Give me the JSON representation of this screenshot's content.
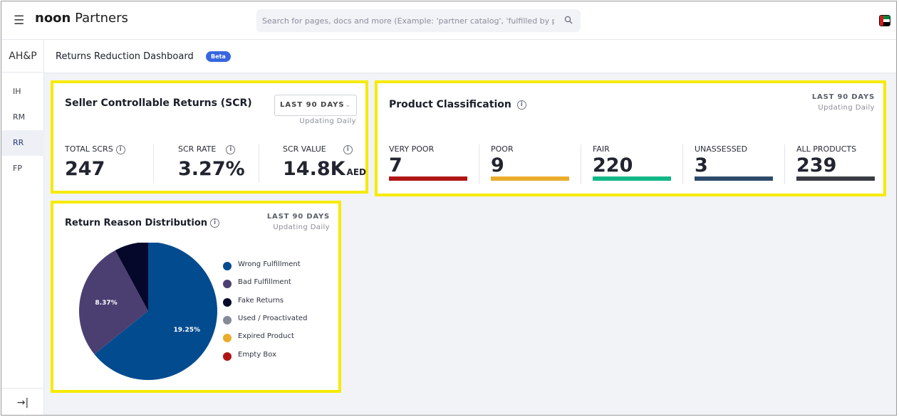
{
  "topbar": {
    "brand_strong": "noon",
    "brand_rest": " Partners",
    "search_placeholder": "Search for pages, docs and more (Example: 'partner catalog', 'fulfilled by p",
    "icons": {
      "menu": "hamburger-icon",
      "search": "search-icon",
      "flag": "uae-flag-icon"
    }
  },
  "sidebar": {
    "title": "AH&P",
    "items": [
      {
        "label": "IH"
      },
      {
        "label": "RM"
      },
      {
        "label": "RR"
      },
      {
        "label": "FP"
      }
    ],
    "active_item": "RR",
    "collapse_icon": "→|"
  },
  "page": {
    "title": "Returns Reduction Dashboard",
    "badge": "Beta"
  },
  "scr": {
    "title": "Seller Controllable Returns (SCR)",
    "period": "LAST 90 DAYS",
    "updating": "Updating Daily",
    "metrics": [
      {
        "label": "TOTAL SCRS",
        "value": "247",
        "unit": ""
      },
      {
        "label": "SCR RATE",
        "value": "3.27%",
        "unit": ""
      },
      {
        "label": "SCR VALUE",
        "value": "14.8K",
        "unit": "AED"
      }
    ]
  },
  "classification": {
    "title": "Product Classification",
    "period": "LAST 90 DAYS",
    "updating": "Updating Daily",
    "items": [
      {
        "label": "VERY POOR",
        "value": "7",
        "color": "#b01515"
      },
      {
        "label": "POOR",
        "value": "9",
        "color": "#e9ac2c"
      },
      {
        "label": "FAIR",
        "value": "220",
        "color": "#12b888"
      },
      {
        "label": "UNASSESSED",
        "value": "3",
        "color": "#2e4a6a"
      },
      {
        "label": "ALL PRODUCTS",
        "value": "239",
        "color": "#3a3c44"
      }
    ]
  },
  "reasons": {
    "title": "Return Reason Distribution",
    "period": "LAST 90 DAYS",
    "updating": "Updating Daily",
    "legend": [
      {
        "label": "Wrong Fulfillment",
        "color": "#024b8f"
      },
      {
        "label": "Bad Fulfillment",
        "color": "#4b3f72"
      },
      {
        "label": "Fake Returns",
        "color": "#05072b"
      },
      {
        "label": "Used / Proactivated",
        "color": "#858a99"
      },
      {
        "label": "Expired Product",
        "color": "#e9ac2c"
      },
      {
        "label": "Empty Box",
        "color": "#b01515"
      }
    ],
    "slices": [
      {
        "name": "Wrong Fulfillment",
        "share": 0.642,
        "label": "19.25%",
        "color": "#024b8f"
      },
      {
        "name": "Bad Fulfillment",
        "share": 0.279,
        "label": "8.37%",
        "color": "#4b3f72"
      },
      {
        "name": "Fake Returns",
        "share": 0.079,
        "label": "",
        "color": "#05072b"
      }
    ]
  }
}
